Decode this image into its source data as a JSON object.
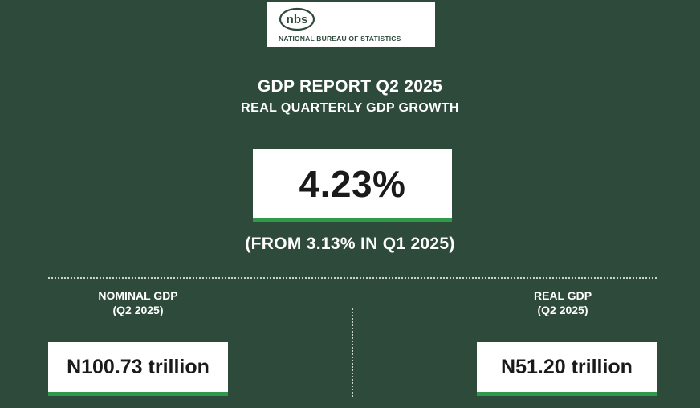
{
  "logo": {
    "mark_text": "nbs",
    "org_name": "NATIONAL BUREAU OF STATISTICS"
  },
  "header": {
    "title": "GDP REPORT Q2 2025",
    "subtitle": "REAL QUARTERLY GDP GROWTH"
  },
  "headline": {
    "value": "4.23%",
    "comparison": "(FROM 3.13% IN Q1 2025)"
  },
  "nominal": {
    "label_line1": "NOMINAL GDP",
    "label_line2": "(Q2 2025)",
    "value": "N100.73 trillion"
  },
  "real": {
    "label_line1": "REAL GDP",
    "label_line2": "(Q2 2025)",
    "value": "N51.20 trillion"
  },
  "colors": {
    "background": "#2e4a3b",
    "accent": "#2f9b4a",
    "card": "#ffffff"
  }
}
